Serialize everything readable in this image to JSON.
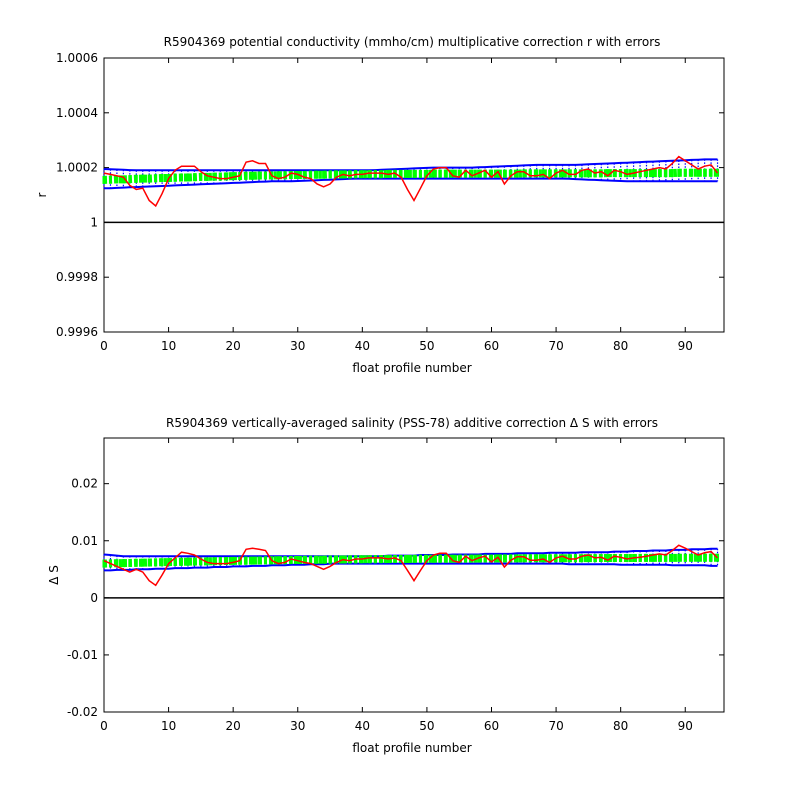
{
  "chart_data": [
    {
      "type": "line",
      "title": "R5904369 potential conductivity (mmho/cm) multiplicative correction r with errors",
      "xlabel": "float profile number",
      "ylabel": "r",
      "xlim": [
        0,
        96
      ],
      "ylim": [
        0.9996,
        1.0006
      ],
      "x_ticks": [
        0,
        10,
        20,
        30,
        40,
        50,
        60,
        70,
        80,
        90
      ],
      "x_tick_labels": [
        "0",
        "10",
        "20",
        "30",
        "40",
        "50",
        "60",
        "70",
        "80",
        "90"
      ],
      "y_ticks": [
        0.9996,
        0.9998,
        1.0,
        1.0002,
        1.0004,
        1.0006
      ],
      "y_tick_labels": [
        "0.9996",
        "0.9998",
        "1",
        "1.0002",
        "1.0004",
        "1.0006"
      ],
      "reference_line": 1.0,
      "x": [
        0,
        1,
        2,
        3,
        4,
        5,
        6,
        7,
        8,
        9,
        10,
        11,
        12,
        13,
        14,
        15,
        16,
        17,
        18,
        19,
        20,
        21,
        22,
        23,
        24,
        25,
        26,
        27,
        28,
        29,
        30,
        31,
        32,
        33,
        34,
        35,
        36,
        37,
        38,
        39,
        40,
        41,
        42,
        43,
        44,
        45,
        46,
        47,
        48,
        49,
        50,
        51,
        52,
        53,
        54,
        55,
        56,
        57,
        58,
        59,
        60,
        61,
        62,
        63,
        64,
        65,
        66,
        67,
        68,
        69,
        70,
        71,
        72,
        73,
        74,
        75,
        76,
        77,
        78,
        79,
        80,
        81,
        82,
        83,
        84,
        85,
        86,
        87,
        88,
        89,
        90,
        91,
        92,
        93,
        94,
        95
      ],
      "series": [
        {
          "role": "measured",
          "color": "#ff0000",
          "values": [
            1.00018,
            1.000175,
            1.00017,
            1.000165,
            1.000135,
            1.00012,
            1.000125,
            1.00008,
            1.00006,
            1.000105,
            1.00016,
            1.00019,
            1.000205,
            1.000205,
            1.000205,
            1.000185,
            1.00017,
            1.000165,
            1.00016,
            1.00016,
            1.000165,
            1.00017,
            1.00022,
            1.000225,
            1.000215,
            1.000215,
            1.00017,
            1.00016,
            1.000165,
            1.00018,
            1.000175,
            1.000165,
            1.00016,
            1.00014,
            1.00013,
            1.00014,
            1.000165,
            1.000175,
            1.00017,
            1.000175,
            1.000175,
            1.00018,
            1.00018,
            1.00018,
            1.000175,
            1.00018,
            1.000165,
            1.00012,
            1.00008,
            1.000125,
            1.00017,
            1.000195,
            1.0002,
            1.0002,
            1.00017,
            1.000165,
            1.00019,
            1.00017,
            1.00018,
            1.00019,
            1.000165,
            1.000185,
            1.00014,
            1.00017,
            1.000185,
            1.000185,
            1.00017,
            1.00017,
            1.000175,
            1.00016,
            1.00018,
            1.00019,
            1.000175,
            1.000175,
            1.00019,
            1.000195,
            1.00018,
            1.000185,
            1.00017,
            1.00019,
            1.000185,
            1.000175,
            1.00018,
            1.000185,
            1.00019,
            1.000195,
            1.0002,
            1.000195,
            1.000215,
            1.00024,
            1.000225,
            1.00021,
            1.000195,
            1.000205,
            1.00021,
            1.00018
          ]
        },
        {
          "role": "fit",
          "color": "#00ff00",
          "values": [
            1.000155,
            1.000156,
            1.000157,
            1.000157,
            1.000158,
            1.000159,
            1.00016,
            1.00016,
            1.000161,
            1.000162,
            1.000162,
            1.000163,
            1.000164,
            1.000164,
            1.000165,
            1.000166,
            1.000166,
            1.000167,
            1.000167,
            1.000168,
            1.000169,
            1.000169,
            1.00017,
            1.00017,
            1.000171,
            1.000171,
            1.000171,
            1.000172,
            1.000172,
            1.000173,
            1.000173,
            1.000173,
            1.000174,
            1.000174,
            1.000174,
            1.000175,
            1.000175,
            1.000175,
            1.000175,
            1.000176,
            1.000176,
            1.000176,
            1.000176,
            1.000176,
            1.000177,
            1.000177,
            1.000177,
            1.000177,
            1.000177,
            1.000177,
            1.000177,
            1.000178,
            1.000178,
            1.000178,
            1.000178,
            1.000178,
            1.000178,
            1.000178,
            1.000178,
            1.000178,
            1.000178,
            1.000178,
            1.000178,
            1.000178,
            1.000178,
            1.000179,
            1.000179,
            1.000179,
            1.000179,
            1.000179,
            1.000179,
            1.000179,
            1.000179,
            1.000179,
            1.000179,
            1.000179,
            1.000179,
            1.000179,
            1.00018,
            1.00018,
            1.00018,
            1.00018,
            1.00018,
            1.00018,
            1.00018,
            1.00018,
            1.00018,
            1.00018,
            1.00018,
            1.000181,
            1.000181,
            1.000181,
            1.000181,
            1.000181,
            1.000181,
            1.000181
          ]
        }
      ],
      "error_upper": [
        1.000195,
        1.000194,
        1.000193,
        1.000192,
        1.000191,
        1.00019,
        1.00019,
        1.00019,
        1.00019,
        1.00019,
        1.00019,
        1.00019,
        1.00019,
        1.00019,
        1.00019,
        1.00019,
        1.00019,
        1.00019,
        1.00019,
        1.00019,
        1.00019,
        1.00019,
        1.00019,
        1.00019,
        1.00019,
        1.00019,
        1.00019,
        1.00019,
        1.00019,
        1.00019,
        1.00019,
        1.00019,
        1.00019,
        1.00019,
        1.00019,
        1.00019,
        1.00019,
        1.00019,
        1.00019,
        1.00019,
        1.00019,
        1.00019,
        1.000191,
        1.000192,
        1.000193,
        1.000194,
        1.000195,
        1.000196,
        1.000197,
        1.000198,
        1.000199,
        1.0002,
        1.0002,
        1.0002,
        1.0002,
        1.0002,
        1.0002,
        1.0002,
        1.000201,
        1.000202,
        1.000203,
        1.000204,
        1.000205,
        1.000206,
        1.000207,
        1.000208,
        1.000209,
        1.00021,
        1.00021,
        1.00021,
        1.00021,
        1.00021,
        1.00021,
        1.00021,
        1.000211,
        1.000212,
        1.000213,
        1.000214,
        1.000215,
        1.000216,
        1.000217,
        1.000218,
        1.000219,
        1.00022,
        1.000221,
        1.000222,
        1.000223,
        1.000224,
        1.000225,
        1.000226,
        1.000227,
        1.000228,
        1.000229,
        1.00023,
        1.00023,
        1.00023
      ],
      "error_lower": [
        1.000125,
        1.000125,
        1.000126,
        1.000127,
        1.000128,
        1.000129,
        1.00013,
        1.000131,
        1.000132,
        1.000133,
        1.000134,
        1.000135,
        1.000136,
        1.000137,
        1.000138,
        1.000139,
        1.00014,
        1.000141,
        1.000142,
        1.000143,
        1.000144,
        1.000145,
        1.000146,
        1.000147,
        1.000148,
        1.000149,
        1.00015,
        1.00015,
        1.00015,
        1.00015,
        1.000151,
        1.000152,
        1.000153,
        1.000154,
        1.000155,
        1.000156,
        1.000157,
        1.000158,
        1.000159,
        1.00016,
        1.00016,
        1.00016,
        1.00016,
        1.00016,
        1.00016,
        1.00016,
        1.00016,
        1.00016,
        1.00016,
        1.00016,
        1.00016,
        1.00016,
        1.00016,
        1.00016,
        1.00016,
        1.00016,
        1.00016,
        1.00016,
        1.00016,
        1.00016,
        1.00016,
        1.00016,
        1.00016,
        1.00016,
        1.00016,
        1.00016,
        1.00016,
        1.00016,
        1.00016,
        1.00016,
        1.00016,
        1.00016,
        1.000159,
        1.000158,
        1.000157,
        1.000156,
        1.000155,
        1.000154,
        1.000153,
        1.000152,
        1.000151,
        1.00015,
        1.00015,
        1.00015,
        1.00015,
        1.00015,
        1.00015,
        1.00015,
        1.00015,
        1.00015,
        1.00015,
        1.00015,
        1.00015,
        1.00015,
        1.00015,
        1.00015
      ]
    },
    {
      "type": "line",
      "title": "R5904369 vertically-averaged salinity (PSS-78) additive correction Δ S with errors",
      "xlabel": "float profile number",
      "ylabel": "Δ S",
      "xlim": [
        0,
        96
      ],
      "ylim": [
        -0.02,
        0.028
      ],
      "x_ticks": [
        0,
        10,
        20,
        30,
        40,
        50,
        60,
        70,
        80,
        90
      ],
      "x_tick_labels": [
        "0",
        "10",
        "20",
        "30",
        "40",
        "50",
        "60",
        "70",
        "80",
        "90"
      ],
      "y_ticks": [
        -0.02,
        -0.01,
        0,
        0.01,
        0.02
      ],
      "y_tick_labels": [
        "-0.02",
        "-0.01",
        "0",
        "0.01",
        "0.02"
      ],
      "reference_line": 0,
      "x": [
        0,
        1,
        2,
        3,
        4,
        5,
        6,
        7,
        8,
        9,
        10,
        11,
        12,
        13,
        14,
        15,
        16,
        17,
        18,
        19,
        20,
        21,
        22,
        23,
        24,
        25,
        26,
        27,
        28,
        29,
        30,
        31,
        32,
        33,
        34,
        35,
        36,
        37,
        38,
        39,
        40,
        41,
        42,
        43,
        44,
        45,
        46,
        47,
        48,
        49,
        50,
        51,
        52,
        53,
        54,
        55,
        56,
        57,
        58,
        59,
        60,
        61,
        62,
        63,
        64,
        65,
        66,
        67,
        68,
        69,
        70,
        71,
        72,
        73,
        74,
        75,
        76,
        77,
        78,
        79,
        80,
        81,
        82,
        83,
        84,
        85,
        86,
        87,
        88,
        89,
        90,
        91,
        92,
        93,
        94,
        95
      ],
      "series": [
        {
          "role": "measured",
          "color": "#ff0000",
          "values": [
            0.0065,
            0.006,
            0.0055,
            0.005,
            0.0045,
            0.005,
            0.0045,
            0.003,
            0.0022,
            0.004,
            0.006,
            0.007,
            0.008,
            0.0078,
            0.0075,
            0.0068,
            0.0062,
            0.006,
            0.006,
            0.006,
            0.0062,
            0.0065,
            0.0085,
            0.0087,
            0.0085,
            0.0083,
            0.0065,
            0.006,
            0.0062,
            0.0068,
            0.0065,
            0.0062,
            0.006,
            0.0055,
            0.005,
            0.0055,
            0.0062,
            0.0067,
            0.0065,
            0.0068,
            0.0068,
            0.007,
            0.007,
            0.007,
            0.0068,
            0.007,
            0.0065,
            0.0048,
            0.003,
            0.0048,
            0.0065,
            0.0075,
            0.0078,
            0.0078,
            0.0065,
            0.0062,
            0.0073,
            0.0065,
            0.007,
            0.0073,
            0.0063,
            0.0071,
            0.0054,
            0.0066,
            0.0072,
            0.0072,
            0.0066,
            0.0066,
            0.0068,
            0.0062,
            0.007,
            0.0073,
            0.0068,
            0.0068,
            0.0073,
            0.0075,
            0.007,
            0.0071,
            0.0066,
            0.0073,
            0.0071,
            0.0068,
            0.007,
            0.0071,
            0.0073,
            0.0075,
            0.0077,
            0.0075,
            0.0083,
            0.0092,
            0.0087,
            0.0081,
            0.0075,
            0.0079,
            0.0081,
            0.007
          ]
        },
        {
          "role": "fit",
          "color": "#00ff00",
          "values": [
            0.006,
            0.00603,
            0.00606,
            0.00608,
            0.00611,
            0.00614,
            0.00616,
            0.00619,
            0.00621,
            0.00624,
            0.00626,
            0.00628,
            0.00631,
            0.00633,
            0.00635,
            0.00637,
            0.00639,
            0.00641,
            0.00643,
            0.00645,
            0.00647,
            0.00649,
            0.00651,
            0.00652,
            0.00654,
            0.00656,
            0.00657,
            0.00659,
            0.0066,
            0.00662,
            0.00663,
            0.00665,
            0.00666,
            0.00667,
            0.00668,
            0.0067,
            0.00671,
            0.00672,
            0.00673,
            0.00674,
            0.00675,
            0.00676,
            0.00677,
            0.00678,
            0.00679,
            0.0068,
            0.0068,
            0.00681,
            0.00682,
            0.00683,
            0.00683,
            0.00684,
            0.00685,
            0.00685,
            0.00686,
            0.00686,
            0.00687,
            0.00688,
            0.00688,
            0.00689,
            0.00689,
            0.0069,
            0.0069,
            0.00691,
            0.00691,
            0.00692,
            0.00692,
            0.00693,
            0.00693,
            0.00693,
            0.00694,
            0.00694,
            0.00695,
            0.00695,
            0.00695,
            0.00696,
            0.00696,
            0.00697,
            0.00697,
            0.00697,
            0.00698,
            0.00698,
            0.00698,
            0.00699,
            0.00699,
            0.00699,
            0.007,
            0.007,
            0.007,
            0.00701,
            0.00701,
            0.00701,
            0.00702,
            0.00702,
            0.00702,
            0.00703
          ]
        }
      ],
      "error_upper": [
        0.0076,
        0.0075,
        0.0074,
        0.0073,
        0.0073,
        0.0073,
        0.0073,
        0.0073,
        0.0073,
        0.0073,
        0.0073,
        0.0073,
        0.0073,
        0.0073,
        0.0073,
        0.0073,
        0.0073,
        0.0073,
        0.0073,
        0.0073,
        0.0073,
        0.0073,
        0.0073,
        0.0073,
        0.0073,
        0.0073,
        0.0073,
        0.0073,
        0.0073,
        0.0073,
        0.0073,
        0.0073,
        0.0073,
        0.0073,
        0.0073,
        0.0073,
        0.0073,
        0.0073,
        0.0073,
        0.0073,
        0.0073,
        0.0073,
        0.0073,
        0.0073,
        0.0074,
        0.0074,
        0.0074,
        0.0074,
        0.0074,
        0.0075,
        0.0075,
        0.0075,
        0.0075,
        0.0075,
        0.0076,
        0.0076,
        0.0076,
        0.0076,
        0.0076,
        0.0077,
        0.0077,
        0.0077,
        0.0077,
        0.0077,
        0.0078,
        0.0078,
        0.0078,
        0.0078,
        0.0078,
        0.0079,
        0.0079,
        0.0079,
        0.0079,
        0.0079,
        0.008,
        0.008,
        0.008,
        0.008,
        0.008,
        0.0081,
        0.0081,
        0.0081,
        0.0082,
        0.0082,
        0.0082,
        0.0083,
        0.0083,
        0.0083,
        0.0084,
        0.0084,
        0.0084,
        0.0085,
        0.0085,
        0.0085,
        0.0086,
        0.0086
      ],
      "error_lower": [
        0.0048,
        0.0048,
        0.0049,
        0.0049,
        0.0049,
        0.005,
        0.005,
        0.005,
        0.0051,
        0.0051,
        0.0051,
        0.0052,
        0.0052,
        0.0052,
        0.0053,
        0.0053,
        0.0053,
        0.0054,
        0.0054,
        0.0054,
        0.0055,
        0.0055,
        0.0055,
        0.0056,
        0.0056,
        0.0056,
        0.0057,
        0.0057,
        0.0057,
        0.0058,
        0.0058,
        0.0058,
        0.0059,
        0.0059,
        0.0059,
        0.006,
        0.006,
        0.006,
        0.006,
        0.006,
        0.006,
        0.006,
        0.006,
        0.006,
        0.006,
        0.006,
        0.006,
        0.006,
        0.006,
        0.006,
        0.006,
        0.006,
        0.006,
        0.006,
        0.006,
        0.006,
        0.006,
        0.006,
        0.006,
        0.006,
        0.006,
        0.006,
        0.006,
        0.006,
        0.006,
        0.006,
        0.006,
        0.006,
        0.006,
        0.006,
        0.006,
        0.006,
        0.0059,
        0.0059,
        0.0059,
        0.0059,
        0.0059,
        0.0059,
        0.0059,
        0.0059,
        0.0058,
        0.0058,
        0.0058,
        0.0058,
        0.0058,
        0.0058,
        0.0058,
        0.0058,
        0.0057,
        0.0057,
        0.0057,
        0.0057,
        0.0057,
        0.0057,
        0.0056,
        0.0056
      ]
    }
  ]
}
